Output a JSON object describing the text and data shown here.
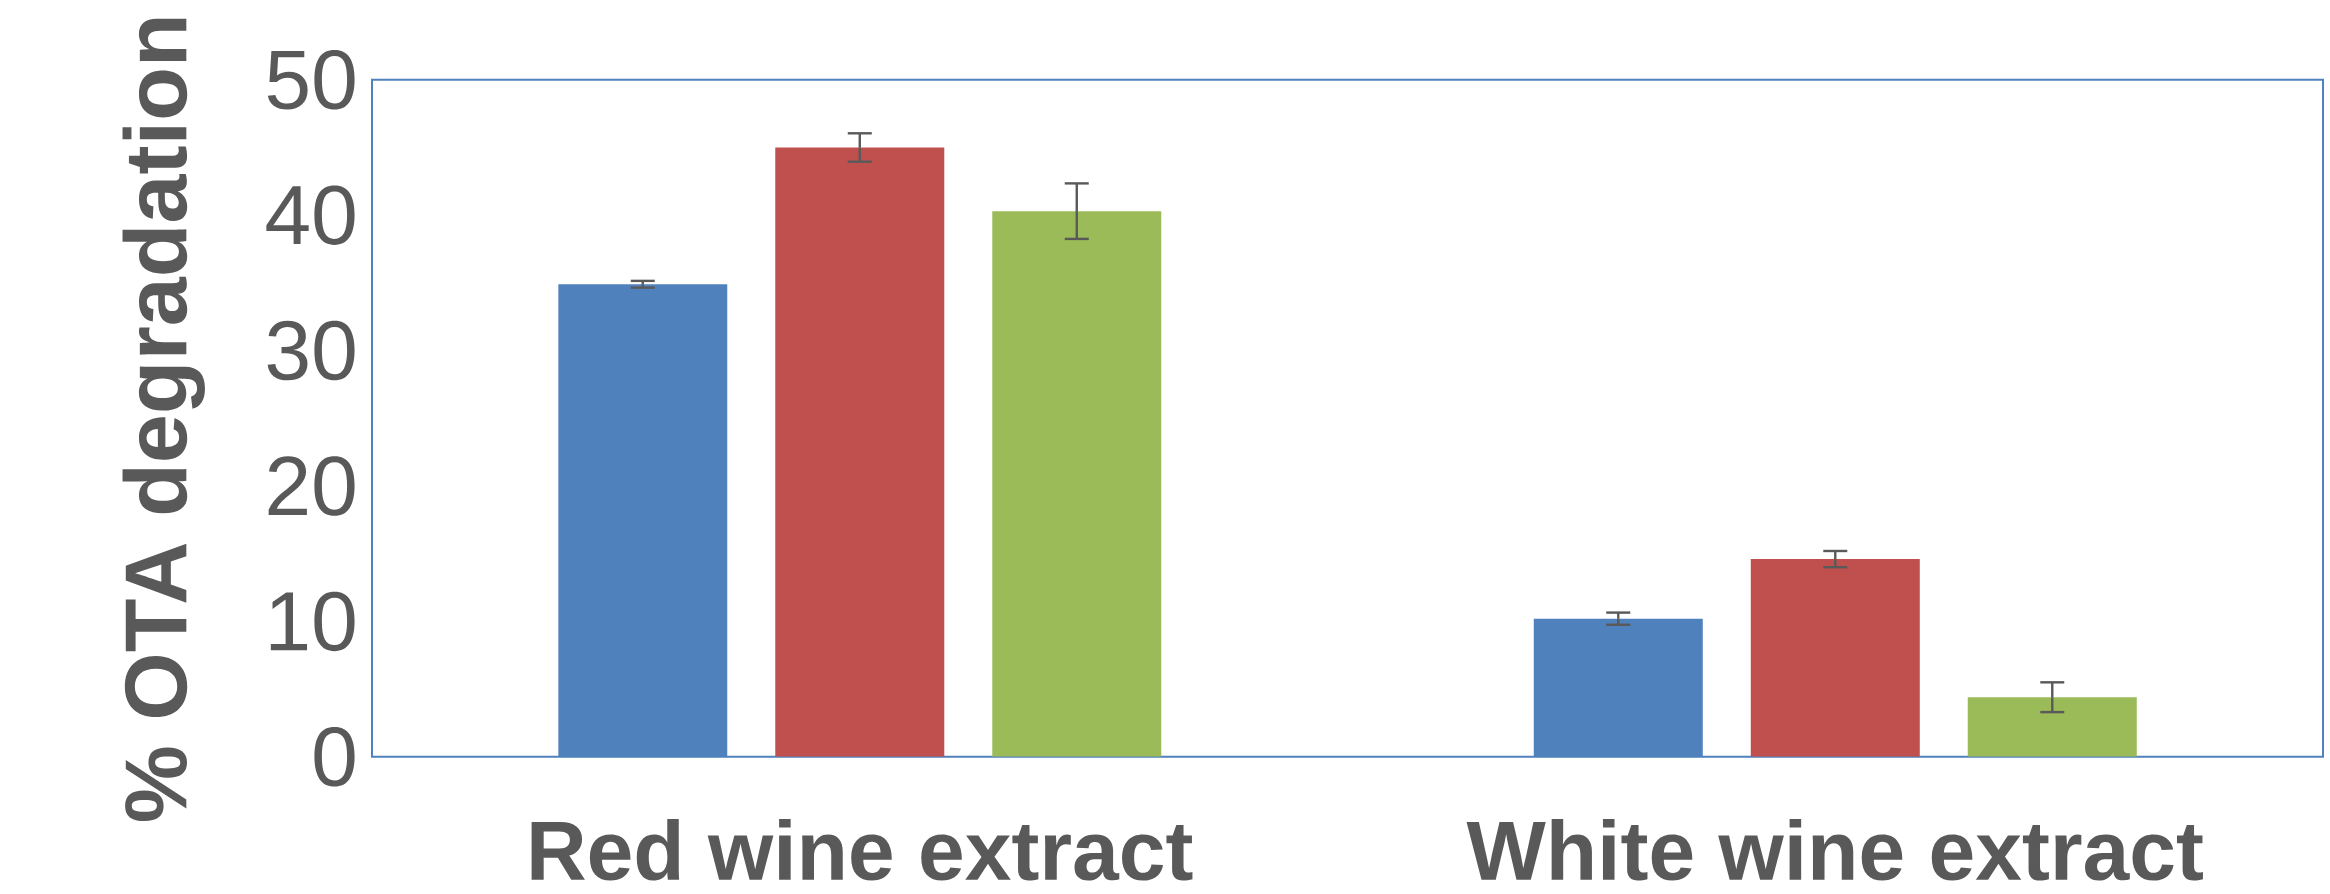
{
  "chart_data": {
    "type": "bar",
    "ylabel": "% OTA degradation",
    "categories": [
      "Red wine extract",
      "White wine extract"
    ],
    "series": [
      {
        "color": "#4f81bd",
        "values": [
          34.9,
          10.2
        ],
        "errors": [
          0.25,
          0.45
        ]
      },
      {
        "color": "#c0504d",
        "values": [
          45.0,
          14.6
        ],
        "errors": [
          1.05,
          0.6
        ]
      },
      {
        "color": "#9bbb59",
        "values": [
          40.3,
          4.4
        ],
        "errors": [
          2.05,
          1.1
        ]
      }
    ],
    "ylim": [
      0,
      50
    ],
    "yticks": [
      0,
      10,
      20,
      30,
      40,
      50
    ]
  }
}
